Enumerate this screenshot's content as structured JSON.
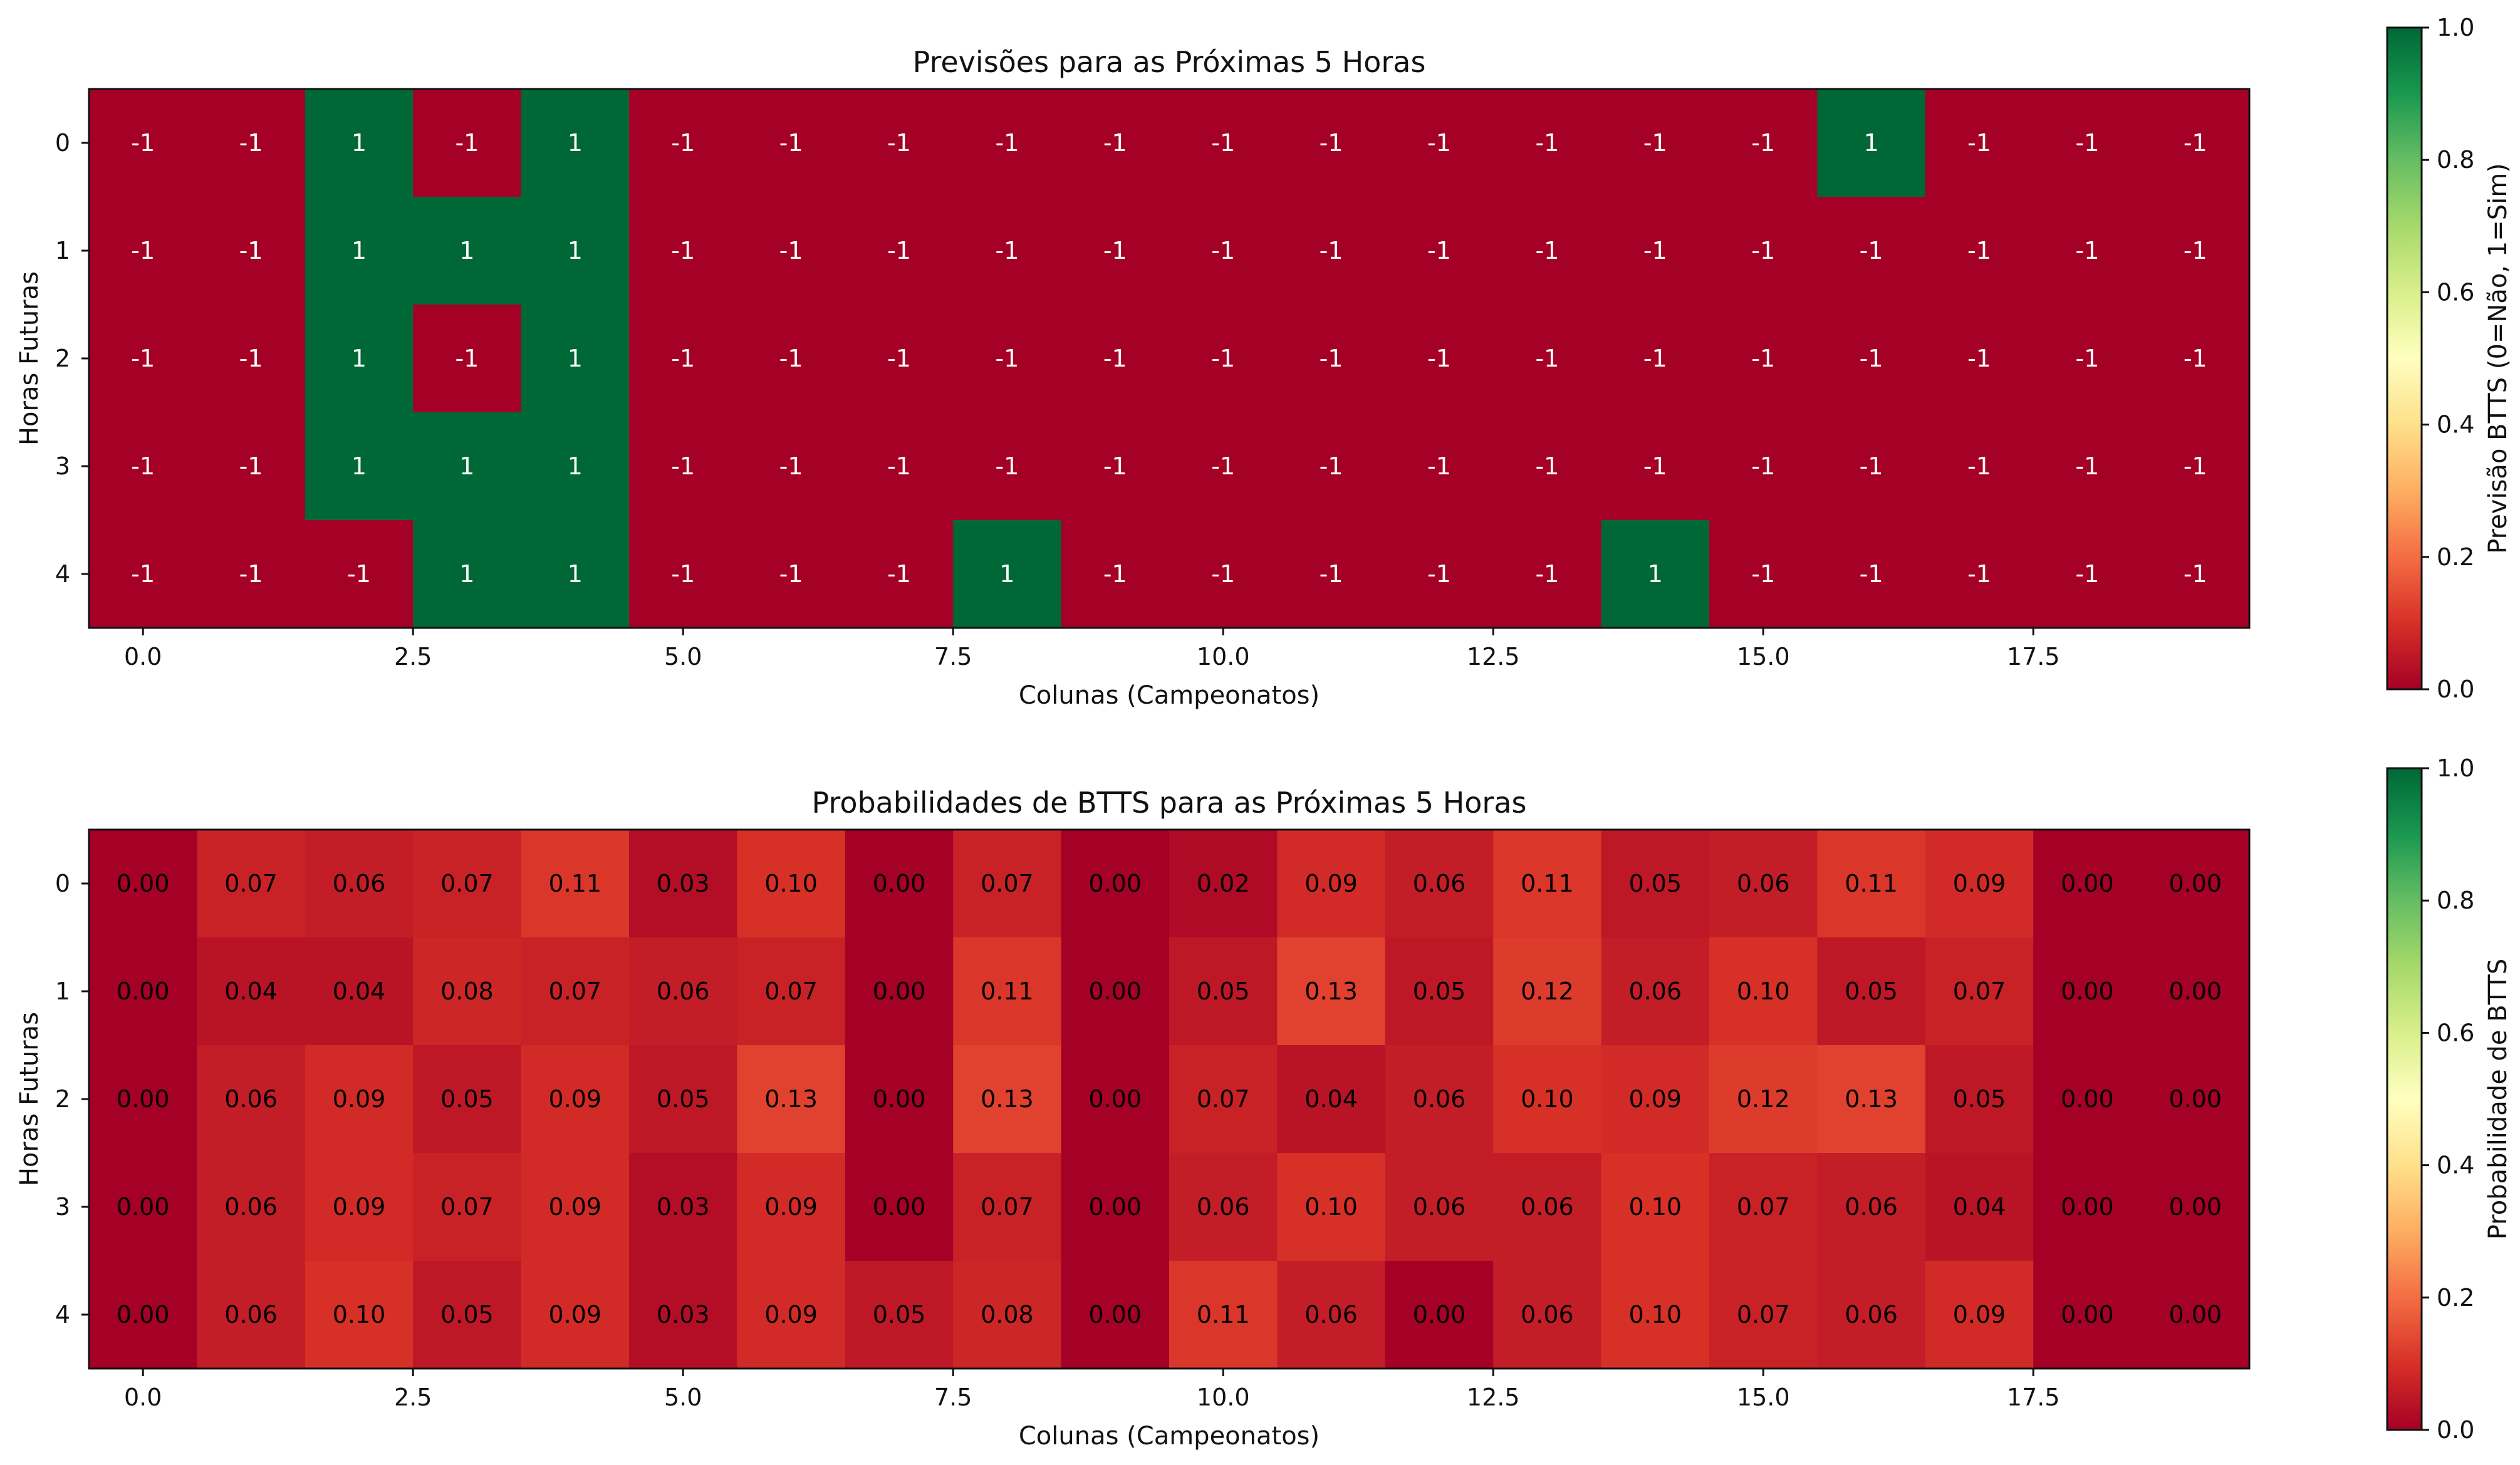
{
  "chart_data": [
    {
      "type": "heatmap",
      "title": "Previsões para as Próximas 5 Horas",
      "xlabel": "Colunas (Campeonatos)",
      "ylabel": "Horas Futuras",
      "x_ticks": [
        "0.0",
        "2.5",
        "5.0",
        "7.5",
        "10.0",
        "12.5",
        "15.0",
        "17.5"
      ],
      "y_ticks": [
        "0",
        "1",
        "2",
        "3",
        "4"
      ],
      "colormap": "RdYlGn",
      "value_range": [
        0,
        1
      ],
      "colorbar": {
        "label": "Previsão BTTS (0=Não, 1=Sim)",
        "ticks": [
          "0.0",
          "0.2",
          "0.4",
          "0.6",
          "0.8",
          "1.0"
        ]
      },
      "cell_format": "int",
      "values": [
        [
          -1,
          -1,
          1,
          -1,
          1,
          -1,
          -1,
          -1,
          -1,
          -1,
          -1,
          -1,
          -1,
          -1,
          -1,
          -1,
          1,
          -1,
          -1,
          -1
        ],
        [
          -1,
          -1,
          1,
          1,
          1,
          -1,
          -1,
          -1,
          -1,
          -1,
          -1,
          -1,
          -1,
          -1,
          -1,
          -1,
          -1,
          -1,
          -1,
          -1
        ],
        [
          -1,
          -1,
          1,
          -1,
          1,
          -1,
          -1,
          -1,
          -1,
          -1,
          -1,
          -1,
          -1,
          -1,
          -1,
          -1,
          -1,
          -1,
          -1,
          -1
        ],
        [
          -1,
          -1,
          1,
          1,
          1,
          -1,
          -1,
          -1,
          -1,
          -1,
          -1,
          -1,
          -1,
          -1,
          -1,
          -1,
          -1,
          -1,
          -1,
          -1
        ],
        [
          -1,
          -1,
          -1,
          1,
          1,
          -1,
          -1,
          -1,
          1,
          -1,
          -1,
          -1,
          -1,
          -1,
          1,
          -1,
          -1,
          -1,
          -1,
          -1
        ]
      ]
    },
    {
      "type": "heatmap",
      "title": "Probabilidades de BTTS para as Próximas 5 Horas",
      "xlabel": "Colunas (Campeonatos)",
      "ylabel": "Horas Futuras",
      "x_ticks": [
        "0.0",
        "2.5",
        "5.0",
        "7.5",
        "10.0",
        "12.5",
        "15.0",
        "17.5"
      ],
      "y_ticks": [
        "0",
        "1",
        "2",
        "3",
        "4"
      ],
      "colormap": "RdYlGn",
      "value_range": [
        0,
        1
      ],
      "colorbar": {
        "label": "Probabilidade de BTTS",
        "ticks": [
          "0.0",
          "0.2",
          "0.4",
          "0.6",
          "0.8",
          "1.0"
        ]
      },
      "cell_format": "2f",
      "values": [
        [
          0.0,
          0.07,
          0.06,
          0.07,
          0.11,
          0.03,
          0.1,
          0.0,
          0.07,
          0.0,
          0.02,
          0.09,
          0.06,
          0.11,
          0.05,
          0.06,
          0.11,
          0.09,
          0.0,
          0.0
        ],
        [
          0.0,
          0.04,
          0.04,
          0.08,
          0.07,
          0.06,
          0.07,
          0.0,
          0.11,
          0.0,
          0.05,
          0.13,
          0.05,
          0.12,
          0.06,
          0.1,
          0.05,
          0.07,
          0.0,
          0.0
        ],
        [
          0.0,
          0.06,
          0.09,
          0.05,
          0.09,
          0.05,
          0.13,
          0.0,
          0.13,
          0.0,
          0.07,
          0.04,
          0.06,
          0.1,
          0.09,
          0.12,
          0.13,
          0.05,
          0.0,
          0.0
        ],
        [
          0.0,
          0.06,
          0.09,
          0.07,
          0.09,
          0.03,
          0.09,
          0.0,
          0.07,
          0.0,
          0.06,
          0.1,
          0.06,
          0.06,
          0.1,
          0.07,
          0.06,
          0.04,
          0.0,
          0.0
        ],
        [
          0.0,
          0.06,
          0.1,
          0.05,
          0.09,
          0.03,
          0.09,
          0.05,
          0.08,
          0.0,
          0.11,
          0.06,
          0.0,
          0.06,
          0.1,
          0.07,
          0.06,
          0.09,
          0.0,
          0.0
        ]
      ]
    }
  ]
}
